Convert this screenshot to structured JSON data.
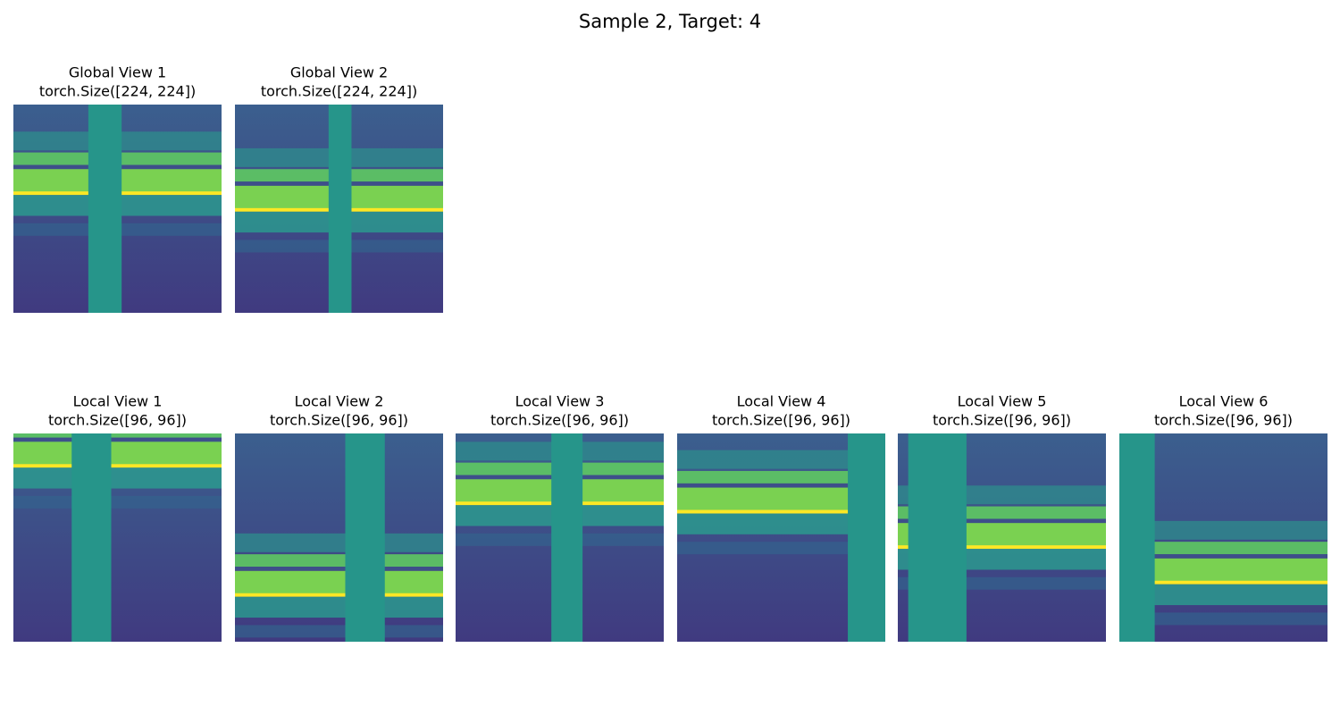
{
  "title": "Sample 2, Target: 4",
  "global_views": [
    {
      "title": "Global View 1",
      "size": "torch.Size([224, 224])"
    },
    {
      "title": "Global View 2",
      "size": "torch.Size([224, 224])"
    }
  ],
  "local_views": [
    {
      "title": "Local View 1",
      "size": "torch.Size([96, 96])"
    },
    {
      "title": "Local View 2",
      "size": "torch.Size([96, 96])"
    },
    {
      "title": "Local View 3",
      "size": "torch.Size([96, 96])"
    },
    {
      "title": "Local View 4",
      "size": "torch.Size([96, 96])"
    },
    {
      "title": "Local View 5",
      "size": "torch.Size([96, 96])"
    },
    {
      "title": "Local View 6",
      "size": "torch.Size([96, 96])"
    }
  ]
}
